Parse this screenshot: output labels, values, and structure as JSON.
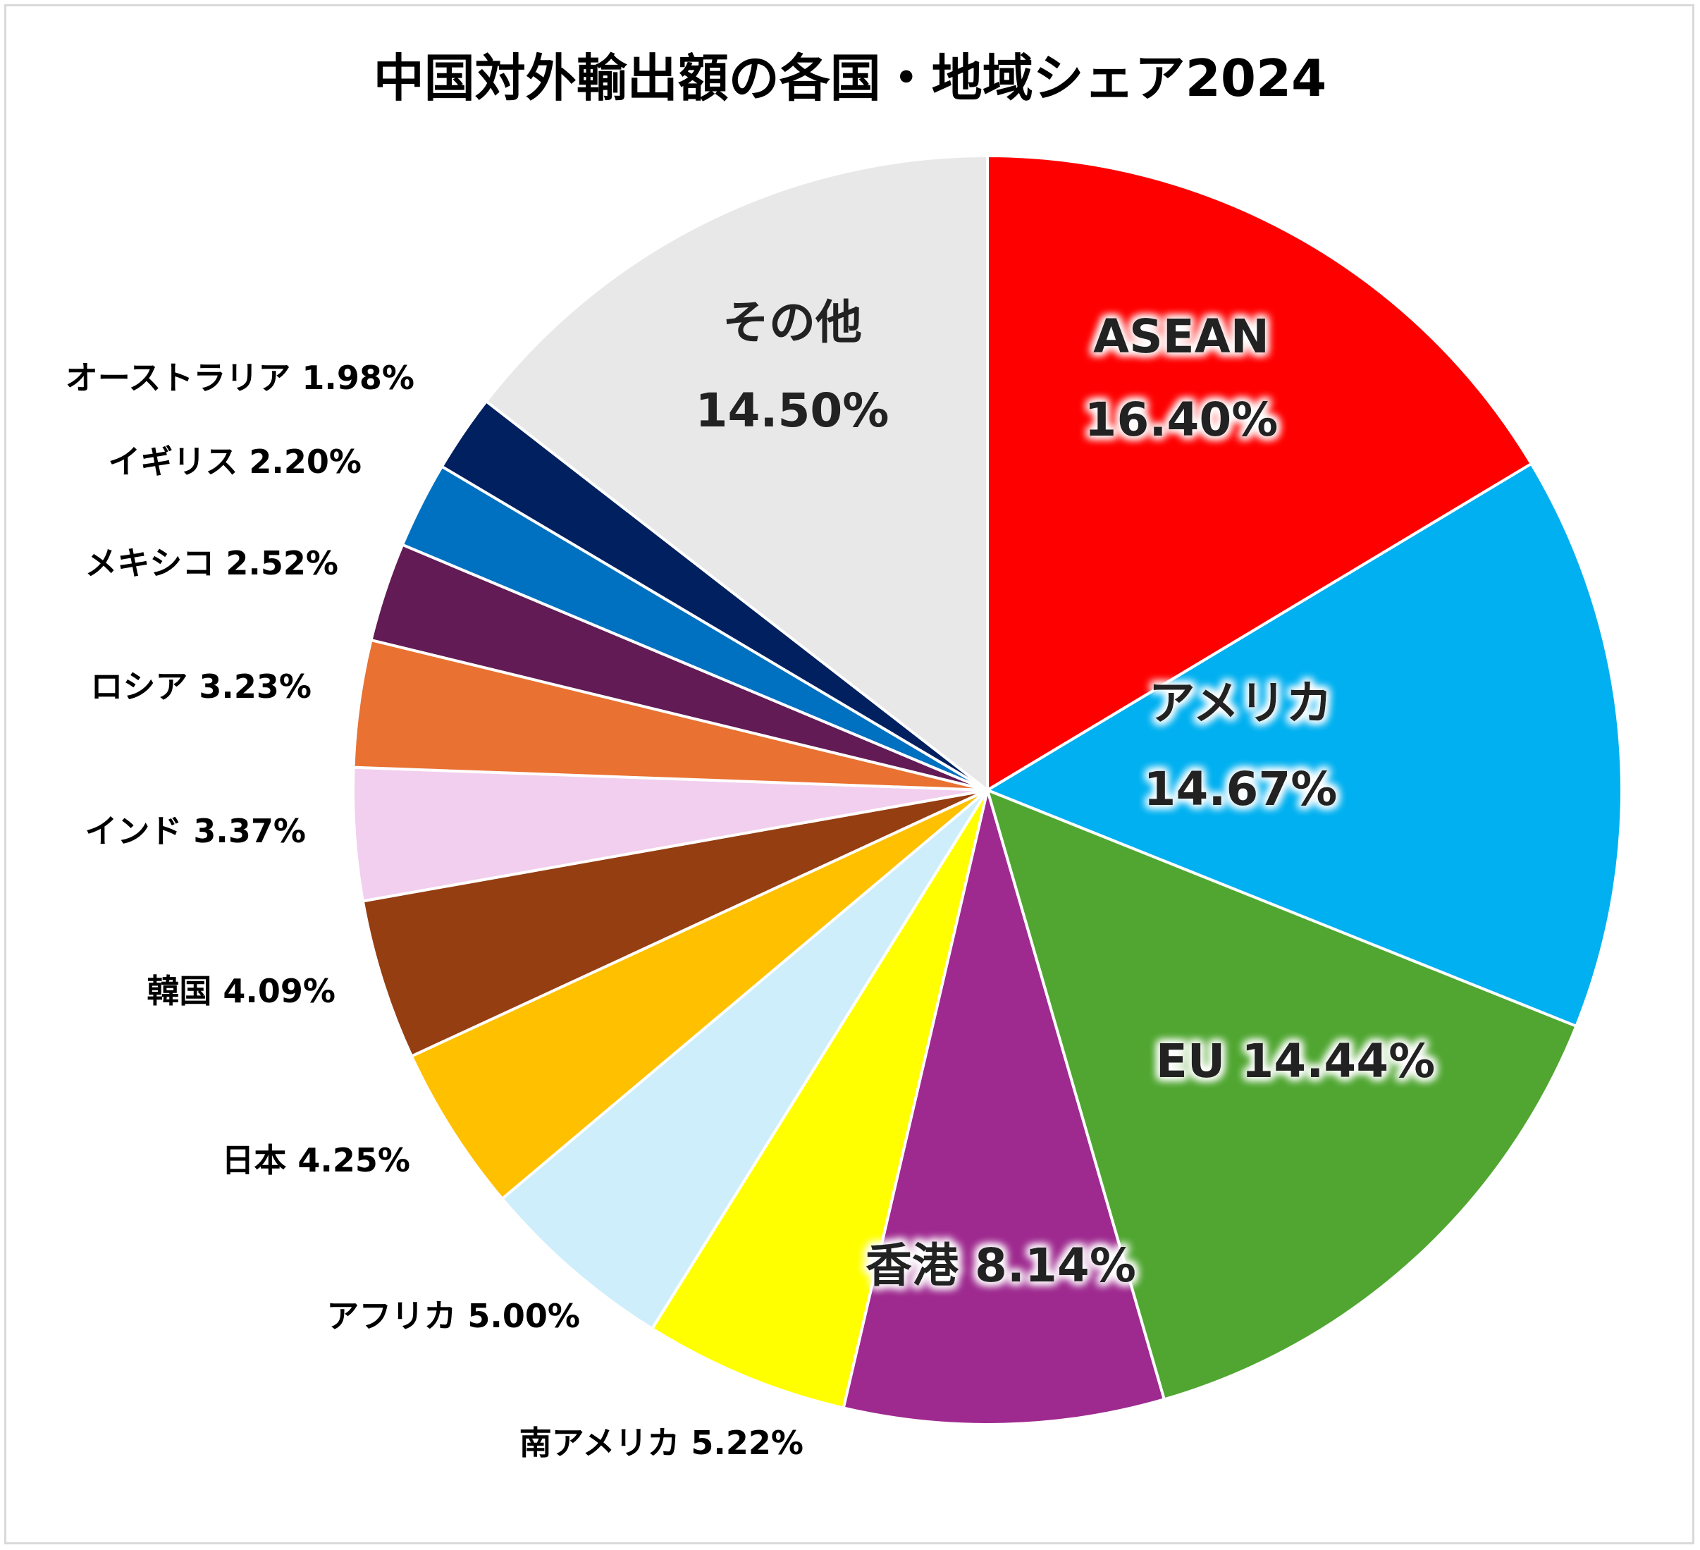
{
  "chart_data": {
    "type": "pie",
    "title": "中国対外輸出額の各国・地域シェア2024",
    "slices": [
      {
        "label": "ASEAN",
        "value": 16.4,
        "value_label": "16.40%",
        "color": "#ff0000",
        "text_color": "#222222",
        "glow": "#ffffff",
        "placement": "inside-two-line"
      },
      {
        "label": "アメリカ",
        "value": 14.67,
        "value_label": "14.67%",
        "color": "#00b0f0",
        "text_color": "#222222",
        "glow": "#ffffff",
        "placement": "inside-two-line"
      },
      {
        "label": "EU",
        "value": 14.44,
        "value_label": "14.44%",
        "color": "#50a631",
        "text_color": "#222222",
        "glow": "#ffffff",
        "placement": "inside-one-line"
      },
      {
        "label": "香港",
        "value": 8.14,
        "value_label": "8.14%",
        "color": "#9e2a8f",
        "text_color": "#222222",
        "glow": "#ffffff",
        "placement": "inside-one-line"
      },
      {
        "label": "南アメリカ",
        "value": 5.22,
        "value_label": "5.22%",
        "color": "#ffff00",
        "text_color": "#000000",
        "placement": "outside"
      },
      {
        "label": "アフリカ",
        "value": 5.0,
        "value_label": "5.00%",
        "color": "#cdeefa",
        "text_color": "#000000",
        "placement": "outside"
      },
      {
        "label": "日本",
        "value": 4.25,
        "value_label": "4.25%",
        "color": "#ffc000",
        "text_color": "#000000",
        "placement": "outside"
      },
      {
        "label": "韓国",
        "value": 4.09,
        "value_label": "4.09%",
        "color": "#953e12",
        "text_color": "#000000",
        "placement": "outside"
      },
      {
        "label": "インド",
        "value": 3.37,
        "value_label": "3.37%",
        "color": "#f2cfee",
        "text_color": "#000000",
        "placement": "outside"
      },
      {
        "label": "ロシア",
        "value": 3.23,
        "value_label": "3.23%",
        "color": "#e97132",
        "text_color": "#000000",
        "placement": "outside"
      },
      {
        "label": "メキシコ",
        "value": 2.52,
        "value_label": "2.52%",
        "color": "#621b54",
        "text_color": "#000000",
        "placement": "outside"
      },
      {
        "label": "イギリス",
        "value": 2.2,
        "value_label": "2.20%",
        "color": "#0070c0",
        "text_color": "#000000",
        "placement": "outside"
      },
      {
        "label": "オーストラリア",
        "value": 1.98,
        "value_label": "1.98%",
        "color": "#002060",
        "text_color": "#000000",
        "placement": "outside"
      },
      {
        "label": "その他",
        "value": 14.5,
        "value_label": "14.50%",
        "color": "#e8e8e8",
        "text_color": "#222222",
        "placement": "inside-two-line"
      }
    ],
    "start": "12 o'clock",
    "direction": "clockwise",
    "legend": "none"
  }
}
